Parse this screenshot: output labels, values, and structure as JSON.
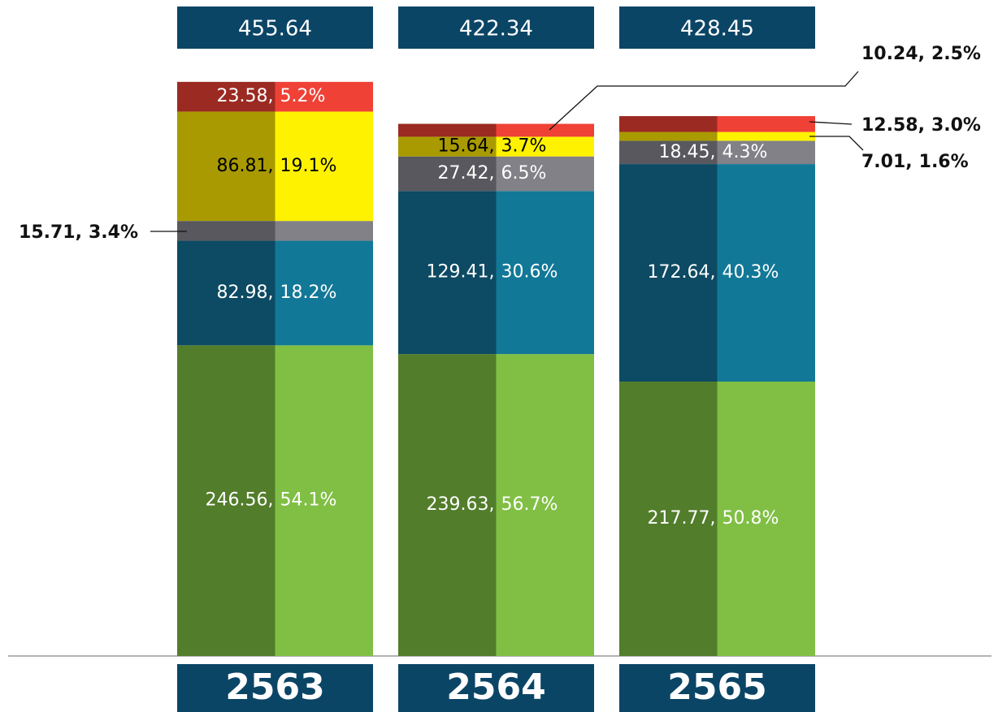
{
  "chart_data": {
    "type": "stacked-bar",
    "categories": [
      "2563",
      "2564",
      "2565"
    ],
    "totals": [
      455.64,
      422.34,
      428.45
    ],
    "header_color": "#0b4566",
    "series": [
      {
        "colors": [
          "#527d2b",
          "#80bf44"
        ],
        "label_color": "#ffffff",
        "values": [
          246.56,
          239.63,
          217.77
        ],
        "value_labels": [
          "246.56,",
          "239.63,",
          "217.77,"
        ],
        "shares": [
          54.1,
          56.7,
          50.8
        ],
        "share_labels": [
          "54.1%",
          "56.7%",
          "50.8%"
        ]
      },
      {
        "colors": [
          "#0d4a63",
          "#127897"
        ],
        "label_color": "#ffffff",
        "values": [
          82.98,
          129.41,
          172.64
        ],
        "value_labels": [
          "82.98,",
          "129.41,",
          "172.64,"
        ],
        "shares": [
          18.2,
          30.6,
          40.3
        ],
        "share_labels": [
          "18.2%",
          "30.6%",
          "40.3%"
        ]
      },
      {
        "colors": [
          "#58585e",
          "#818187"
        ],
        "label_color": "#ffffff",
        "values": [
          15.71,
          27.42,
          18.45
        ],
        "value_labels": [
          "15.71,",
          "27.42,",
          "18.45,"
        ],
        "shares": [
          3.4,
          6.5,
          4.3
        ],
        "share_labels": [
          "3.4%",
          "6.5%",
          "4.3%"
        ]
      },
      {
        "colors": [
          "#a89a00",
          "#fff200"
        ],
        "label_color": "#000000",
        "values": [
          86.81,
          15.64,
          7.01
        ],
        "value_labels": [
          "86.81,",
          "15.64,",
          "7.01,"
        ],
        "shares": [
          19.1,
          3.7,
          1.6
        ],
        "share_labels": [
          "19.1%",
          "3.7%",
          "1.6%"
        ]
      },
      {
        "colors": [
          "#9b2a22",
          "#ef4136"
        ],
        "label_color": "#ffffff",
        "values": [
          23.58,
          10.24,
          12.58
        ],
        "value_labels": [
          "23.58,",
          "10.24,",
          "12.58,"
        ],
        "shares": [
          5.2,
          2.5,
          3.0
        ],
        "share_labels": [
          "5.2%",
          "2.5%",
          "3.0%"
        ]
      }
    ]
  }
}
